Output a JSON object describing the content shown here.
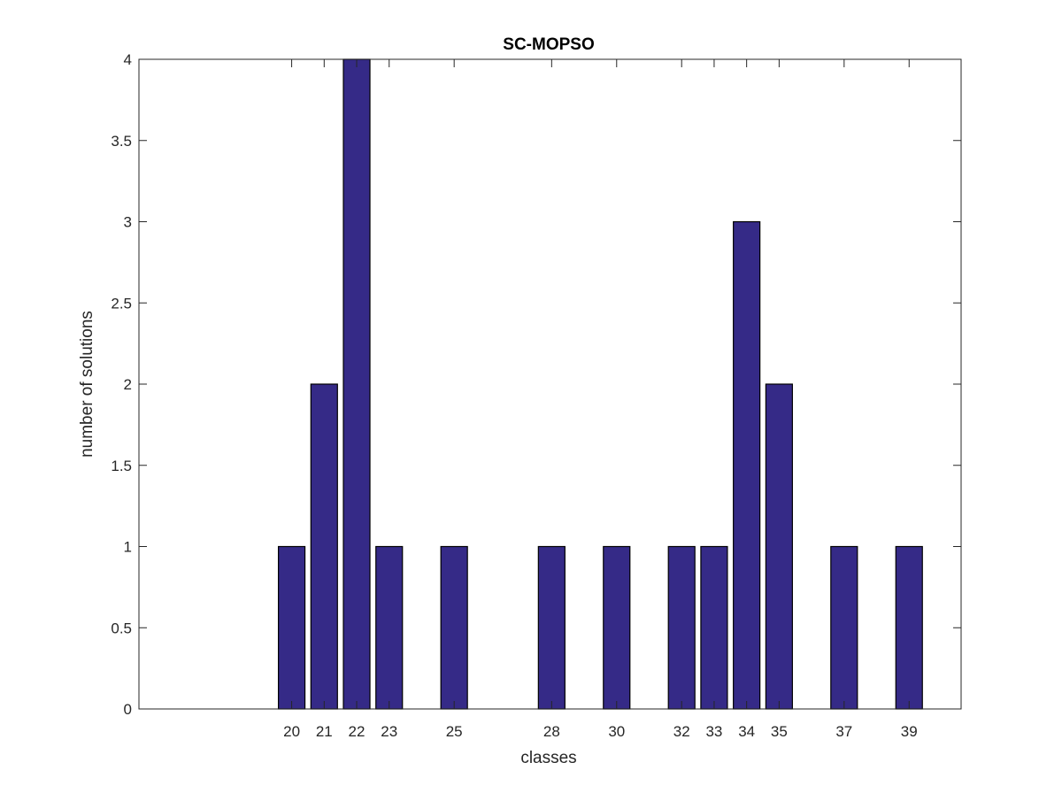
{
  "chart_data": {
    "type": "bar",
    "title": "SC-MOPSO",
    "xlabel": "classes",
    "ylabel": "number of solutions",
    "xlim": [
      15.3,
      40.6
    ],
    "ylim": [
      0,
      4
    ],
    "categories": [
      "20",
      "21",
      "22",
      "23",
      "25",
      "28",
      "30",
      "32",
      "33",
      "34",
      "35",
      "37",
      "39"
    ],
    "x": [
      20,
      21,
      22,
      23,
      25,
      28,
      30,
      32,
      33,
      34,
      35,
      37,
      39
    ],
    "values": [
      1,
      2,
      4,
      1,
      1,
      1,
      1,
      1,
      1,
      3,
      2,
      1,
      1
    ],
    "yticks": [
      0,
      0.5,
      1,
      1.5,
      2,
      2.5,
      3,
      3.5,
      4
    ],
    "ytick_labels": [
      "0",
      "0.5",
      "1",
      "1.5",
      "2",
      "2.5",
      "3",
      "3.5",
      "4"
    ],
    "bar_color": "#352A87",
    "bar_edge_color": "#000000",
    "grid": false,
    "legend": "none"
  }
}
